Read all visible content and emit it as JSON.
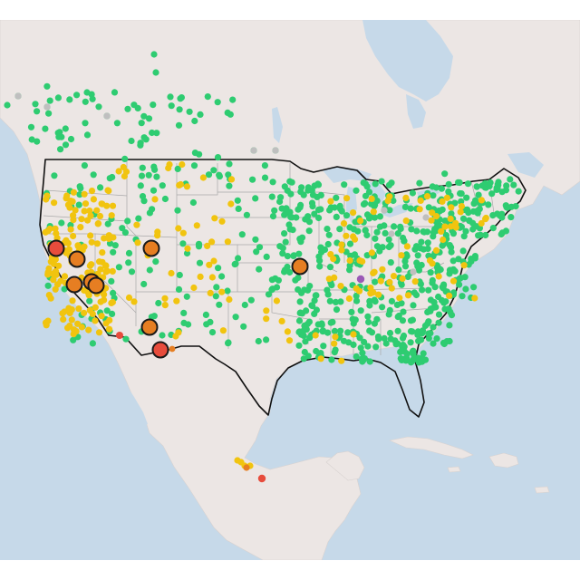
{
  "map": {
    "basemap": "light-gray-canvas",
    "colors": {
      "water": "#c6d9e9",
      "land": "#ece6e4",
      "state_lines": "#a9a9a9",
      "country_outline": "#111111",
      "good": "#2ecc71",
      "moderate": "#f1c40f",
      "unhealthy_sensitive": "#e67e22",
      "unhealthy": "#e74c3c",
      "very_unhealthy": "#9b59b6",
      "no_data": "#bfbfbf"
    },
    "large_markers": [
      {
        "category": "unhealthy",
        "loc": "north-coast-ca"
      },
      {
        "category": "unhealthy_sensitive",
        "loc": "northern-sierra-ca"
      },
      {
        "category": "unhealthy_sensitive",
        "loc": "central-valley-ca"
      },
      {
        "category": "unhealthy_sensitive",
        "loc": "fresno-ca"
      },
      {
        "category": "unhealthy_sensitive",
        "loc": "central-sierra-ca"
      },
      {
        "category": "unhealthy_sensitive",
        "loc": "salt-lake-ut"
      },
      {
        "category": "unhealthy_sensitive",
        "loc": "kansas-city-mo"
      },
      {
        "category": "unhealthy_sensitive",
        "loc": "phoenix-az"
      },
      {
        "category": "unhealthy",
        "loc": "tucson-az"
      }
    ],
    "small_markers_summary": {
      "good": "many",
      "moderate": "many",
      "unhealthy_sensitive": "few",
      "unhealthy": "few",
      "very_unhealthy": "one",
      "no_data": "several"
    }
  }
}
